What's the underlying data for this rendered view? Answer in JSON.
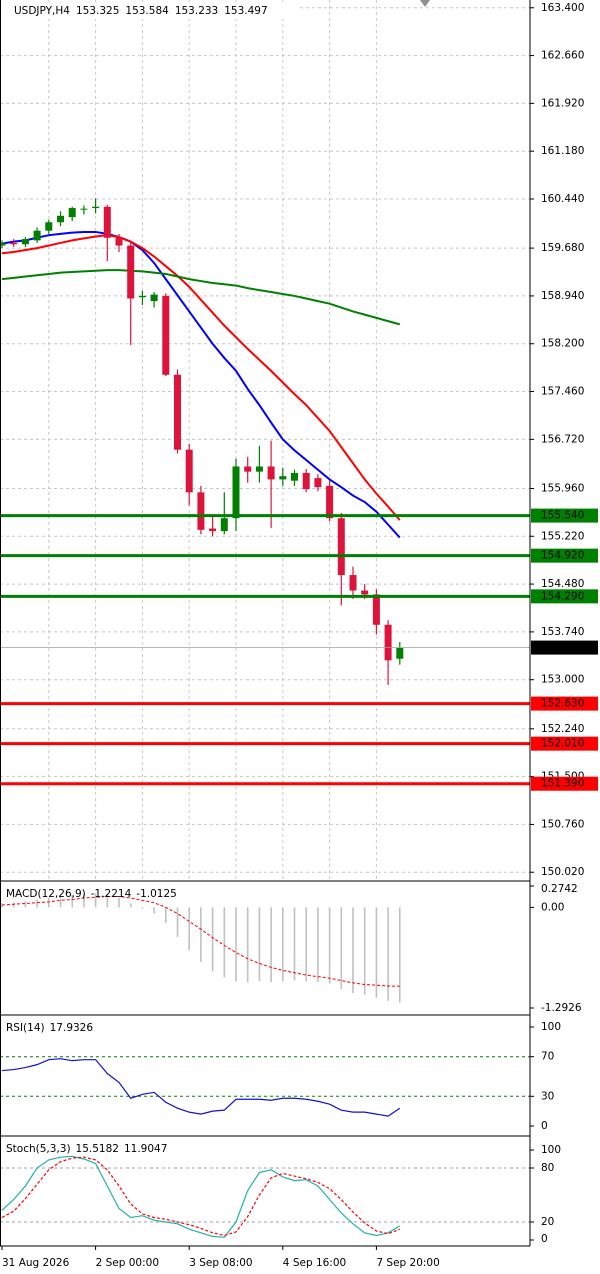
{
  "chart_data": [
    {
      "type": "candlestick",
      "symbol": "USDJPY,H4",
      "categories": [
        "31 Aug 2026",
        null,
        null,
        null,
        null,
        null,
        null,
        null,
        "2 Sep 00:00",
        null,
        null,
        null,
        null,
        null,
        null,
        null,
        "3 Sep 08:00",
        null,
        null,
        null,
        null,
        null,
        null,
        null,
        "4 Sep 16:00",
        null,
        null,
        null,
        null,
        null,
        null,
        null,
        "7 Sep 20:00",
        null,
        null
      ],
      "open": [
        159.72,
        159.76,
        159.74,
        159.8,
        159.95,
        160.08,
        160.16,
        160.28,
        160.3,
        160.32,
        159.84,
        159.72,
        158.92,
        158.86,
        158.94,
        157.72,
        156.56,
        155.9,
        155.34,
        155.3,
        155.5,
        156.3,
        156.22,
        156.3,
        156.1,
        156.08,
        156.2,
        156.12,
        156.0,
        155.5,
        154.62,
        154.38,
        154.32,
        153.85,
        153.325
      ],
      "high": [
        159.8,
        159.82,
        159.85,
        160.0,
        160.12,
        160.25,
        160.32,
        160.34,
        160.45,
        160.35,
        159.9,
        159.78,
        159.02,
        159.0,
        158.98,
        157.8,
        156.65,
        156.0,
        155.55,
        155.9,
        156.42,
        156.45,
        156.62,
        156.7,
        156.28,
        156.25,
        156.26,
        156.18,
        156.08,
        155.58,
        154.75,
        154.48,
        154.4,
        153.92,
        153.584
      ],
      "low": [
        159.68,
        159.7,
        159.7,
        159.76,
        159.9,
        160.02,
        160.1,
        160.2,
        160.22,
        159.48,
        159.62,
        158.18,
        158.8,
        158.76,
        157.7,
        156.5,
        155.7,
        155.25,
        155.22,
        155.25,
        155.3,
        156.05,
        156.05,
        155.35,
        156.0,
        156.0,
        155.9,
        155.92,
        155.45,
        154.15,
        154.25,
        154.25,
        153.7,
        152.92,
        153.233
      ],
      "close": [
        159.76,
        159.74,
        159.82,
        159.95,
        160.08,
        160.18,
        160.3,
        160.29,
        160.32,
        159.84,
        159.72,
        158.9,
        158.94,
        158.96,
        157.72,
        156.56,
        155.9,
        155.32,
        155.3,
        155.5,
        156.3,
        156.22,
        156.3,
        156.1,
        156.15,
        156.2,
        155.95,
        155.98,
        155.5,
        154.62,
        154.38,
        154.32,
        153.85,
        153.3,
        153.497
      ],
      "bull_color": "#008000",
      "bear_color": "#dc143c",
      "series": [
        {
          "color": "#0000ff",
          "values": [
            159.75,
            159.78,
            159.8,
            159.84,
            159.88,
            159.9,
            159.92,
            159.93,
            159.93,
            159.9,
            159.85,
            159.78,
            159.65,
            159.45,
            159.2,
            158.95,
            158.7,
            158.45,
            158.2,
            157.98,
            157.78,
            157.5,
            157.25,
            156.98,
            156.72,
            156.55,
            156.4,
            156.25,
            156.1,
            155.98,
            155.85,
            155.75,
            155.6,
            155.4,
            155.2
          ]
        },
        {
          "color": "#ff0000",
          "values": [
            159.6,
            159.62,
            159.65,
            159.68,
            159.72,
            159.76,
            159.8,
            159.83,
            159.86,
            159.88,
            159.85,
            159.78,
            159.68,
            159.55,
            159.4,
            159.25,
            159.08,
            158.88,
            158.68,
            158.48,
            158.3,
            158.12,
            157.95,
            157.78,
            157.6,
            157.42,
            157.25,
            157.05,
            156.85,
            156.6,
            156.35,
            156.1,
            155.88,
            155.68,
            155.47
          ]
        },
        {
          "color": "#008000",
          "values": [
            159.2,
            159.22,
            159.24,
            159.26,
            159.28,
            159.3,
            159.31,
            159.32,
            159.33,
            159.34,
            159.34,
            159.33,
            159.32,
            159.3,
            159.28,
            159.24,
            159.2,
            159.17,
            159.14,
            159.12,
            159.1,
            159.06,
            159.03,
            159.0,
            158.97,
            158.94,
            158.9,
            158.86,
            158.82,
            158.76,
            158.7,
            158.65,
            158.6,
            158.55,
            158.5
          ]
        }
      ],
      "levels": [
        {
          "value": 155.54,
          "label": "155.540",
          "color": "#008000"
        },
        {
          "value": 154.92,
          "label": "154.920",
          "color": "#008000"
        },
        {
          "value": 154.29,
          "label": "154.290",
          "color": "#008000"
        },
        {
          "value": 152.63,
          "label": "152.630",
          "color": "#ff0000"
        },
        {
          "value": 152.01,
          "label": "152.010",
          "color": "#ff0000"
        },
        {
          "value": 151.39,
          "label": "151.390",
          "color": "#ff0000"
        }
      ],
      "ylim": [
        149.9,
        163.52
      ],
      "yticks": [
        {
          "value": 163.4,
          "label": "163.400"
        },
        {
          "value": 162.66,
          "label": "162.660"
        },
        {
          "value": 161.92,
          "label": "161.920"
        },
        {
          "value": 161.18,
          "label": "161.180"
        },
        {
          "value": 160.44,
          "label": "160.440"
        },
        {
          "value": 159.68,
          "label": "159.680"
        },
        {
          "value": 158.94,
          "label": "158.940"
        },
        {
          "value": 158.2,
          "label": "158.200"
        },
        {
          "value": 157.46,
          "label": "157.460"
        },
        {
          "value": 156.72,
          "label": "156.720"
        },
        {
          "value": 155.96,
          "label": "155.960"
        },
        {
          "value": 155.22,
          "label": "155.220"
        },
        {
          "value": 154.48,
          "label": "154.480"
        },
        {
          "value": 153.74,
          "label": "153.740"
        },
        {
          "value": 153.0,
          "label": "153.000"
        },
        {
          "value": 152.24,
          "label": "152.240"
        },
        {
          "value": 151.5,
          "label": "151.500"
        },
        {
          "value": 150.76,
          "label": "150.760"
        },
        {
          "value": 150.02,
          "label": "150.020"
        }
      ],
      "grid": true
    },
    {
      "type": "bar",
      "title": "MACD(12,26,9)",
      "series": [
        {
          "style": "histogram",
          "color": "#c0c0c0",
          "values": [
            0.05,
            0.06,
            0.08,
            0.1,
            0.12,
            0.14,
            0.16,
            0.17,
            0.18,
            0.16,
            0.12,
            0.05,
            -0.02,
            -0.08,
            -0.2,
            -0.38,
            -0.55,
            -0.7,
            -0.82,
            -0.9,
            -0.95,
            -0.96,
            -0.95,
            -0.96,
            -0.95,
            -0.94,
            -0.95,
            -0.96,
            -0.98,
            -1.05,
            -1.1,
            -1.12,
            -1.16,
            -1.2,
            -1.2214
          ]
        },
        {
          "style": "dashed",
          "color": "#ff0000",
          "values": [
            0.03,
            0.04,
            0.05,
            0.06,
            0.07,
            0.09,
            0.1,
            0.12,
            0.13,
            0.14,
            0.14,
            0.12,
            0.09,
            0.06,
            0.0,
            -0.08,
            -0.18,
            -0.28,
            -0.39,
            -0.49,
            -0.58,
            -0.66,
            -0.72,
            -0.77,
            -0.81,
            -0.84,
            -0.87,
            -0.89,
            -0.91,
            -0.94,
            -0.97,
            -0.99,
            -1.0,
            -1.01,
            -1.0125
          ]
        }
      ],
      "ylim": [
        -1.2926,
        0.2742
      ],
      "yticks": [
        0.2742,
        {
          "value": 0,
          "label": "0.00"
        },
        -1.2926
      ]
    },
    {
      "type": "line",
      "title": "RSI(14)",
      "series": [
        {
          "color": "#1010d0",
          "values": [
            56,
            57,
            59,
            62,
            67,
            68,
            66,
            67,
            67,
            53,
            44,
            28,
            32,
            34,
            24,
            18,
            14,
            12,
            15,
            16,
            27,
            27,
            27,
            26,
            28,
            28,
            27,
            25,
            22,
            16,
            14,
            14,
            12,
            10,
            17.9326
          ]
        }
      ],
      "ylim": [
        0,
        100
      ],
      "yticks": [
        100,
        70,
        30,
        0
      ],
      "levels_color": "#008000"
    },
    {
      "type": "line",
      "title": "Stoch(5,3,3)",
      "series": [
        {
          "color": "#20b2aa",
          "values": [
            33,
            45,
            60,
            80,
            89,
            92,
            93,
            90,
            85,
            60,
            35,
            25,
            27,
            22,
            20,
            18,
            12,
            8,
            4,
            3,
            20,
            55,
            75,
            78,
            70,
            66,
            67,
            60,
            45,
            30,
            18,
            8,
            5,
            8,
            15.5182
          ]
        },
        {
          "style": "dashed",
          "color": "#ff0000",
          "values": [
            25,
            32,
            46,
            62,
            78,
            87,
            91,
            92,
            89,
            78,
            60,
            40,
            29,
            25,
            23,
            20,
            17,
            13,
            8,
            5,
            9,
            26,
            50,
            69,
            74,
            71,
            68,
            64,
            57,
            45,
            31,
            19,
            10,
            7,
            11.9047
          ]
        }
      ],
      "ylim": [
        0,
        100
      ],
      "yticks": [
        100,
        80,
        20,
        0
      ],
      "levels_color": "#a0a0a0"
    }
  ]
}
